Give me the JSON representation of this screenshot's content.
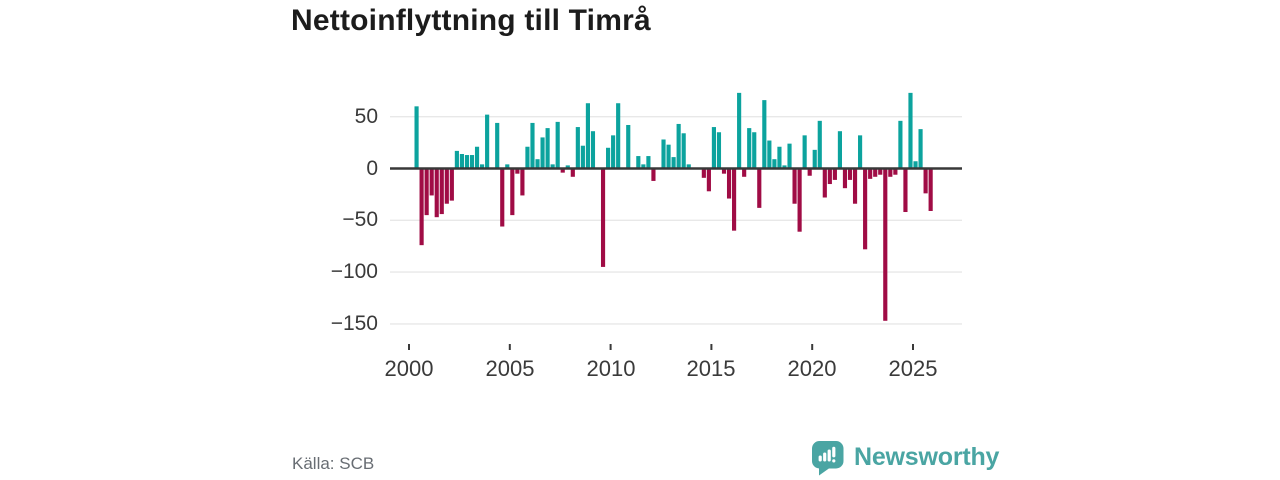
{
  "title": "Nettoinflyttning till Timrå",
  "source": "Källa: SCB",
  "branding": {
    "logo_text": "Newsworthy",
    "logo_icon": "speech-bubble-with-bar-chart-and-exclamation"
  },
  "colors": {
    "positive": "#0ca39e",
    "negative": "#a00c45",
    "grid": "#e8e8e8",
    "zero_line": "#383838",
    "axis_text": "#3a3a3a",
    "title_text": "#1c1c1c",
    "source_text": "#686d73",
    "brand_teal": "#4aa5a3"
  },
  "chart_data": {
    "type": "bar",
    "title": "Nettoinflyttning till Timrå",
    "frequency": "quarterly",
    "first_period": "2000-Q2",
    "last_period": "2025-Q4",
    "xlabel": "",
    "ylabel": "",
    "ylim": [
      -160,
      80
    ],
    "grid": true,
    "y_ticks": [
      50,
      0,
      -50,
      -100,
      -150
    ],
    "y_tick_labels": [
      "50",
      "0",
      "−50",
      "−100",
      "−150"
    ],
    "x_ticks": [
      "2000",
      "2005",
      "2010",
      "2015",
      "2020",
      "2025"
    ],
    "series_by_year": {
      "2000": [
        null,
        60,
        -74,
        -45
      ],
      "2001": [
        -26,
        -47,
        -44,
        -34
      ],
      "2002": [
        -31,
        17,
        14,
        13
      ],
      "2003": [
        13,
        21,
        4,
        52
      ],
      "2004": [
        0,
        44,
        -56,
        4
      ],
      "2005": [
        -45,
        -5,
        -26,
        21
      ],
      "2006": [
        44,
        9,
        30,
        39
      ],
      "2007": [
        4,
        45,
        -4,
        3
      ],
      "2008": [
        -8,
        40,
        22,
        63
      ],
      "2009": [
        36,
        0,
        -95,
        20
      ],
      "2010": [
        32,
        63,
        0,
        42
      ],
      "2011": [
        0,
        12,
        4,
        12
      ],
      "2012": [
        -12,
        0,
        28,
        23
      ],
      "2013": [
        11,
        43,
        34,
        4
      ],
      "2014": [
        0,
        0,
        -9,
        -22
      ],
      "2015": [
        40,
        35,
        -5,
        -29
      ],
      "2016": [
        -60,
        73,
        -8,
        39
      ],
      "2017": [
        35,
        -38,
        66,
        27
      ],
      "2018": [
        9,
        21,
        3,
        24
      ],
      "2019": [
        -34,
        -61,
        32,
        -7
      ],
      "2020": [
        18,
        46,
        -28,
        -15
      ],
      "2021": [
        -11,
        36,
        -19,
        -11
      ],
      "2022": [
        -34,
        32,
        -78,
        -10
      ],
      "2023": [
        -8,
        -6,
        -147,
        -8
      ],
      "2024": [
        -6,
        46,
        -42,
        73
      ],
      "2025": [
        7,
        38,
        -24,
        -41
      ]
    }
  }
}
